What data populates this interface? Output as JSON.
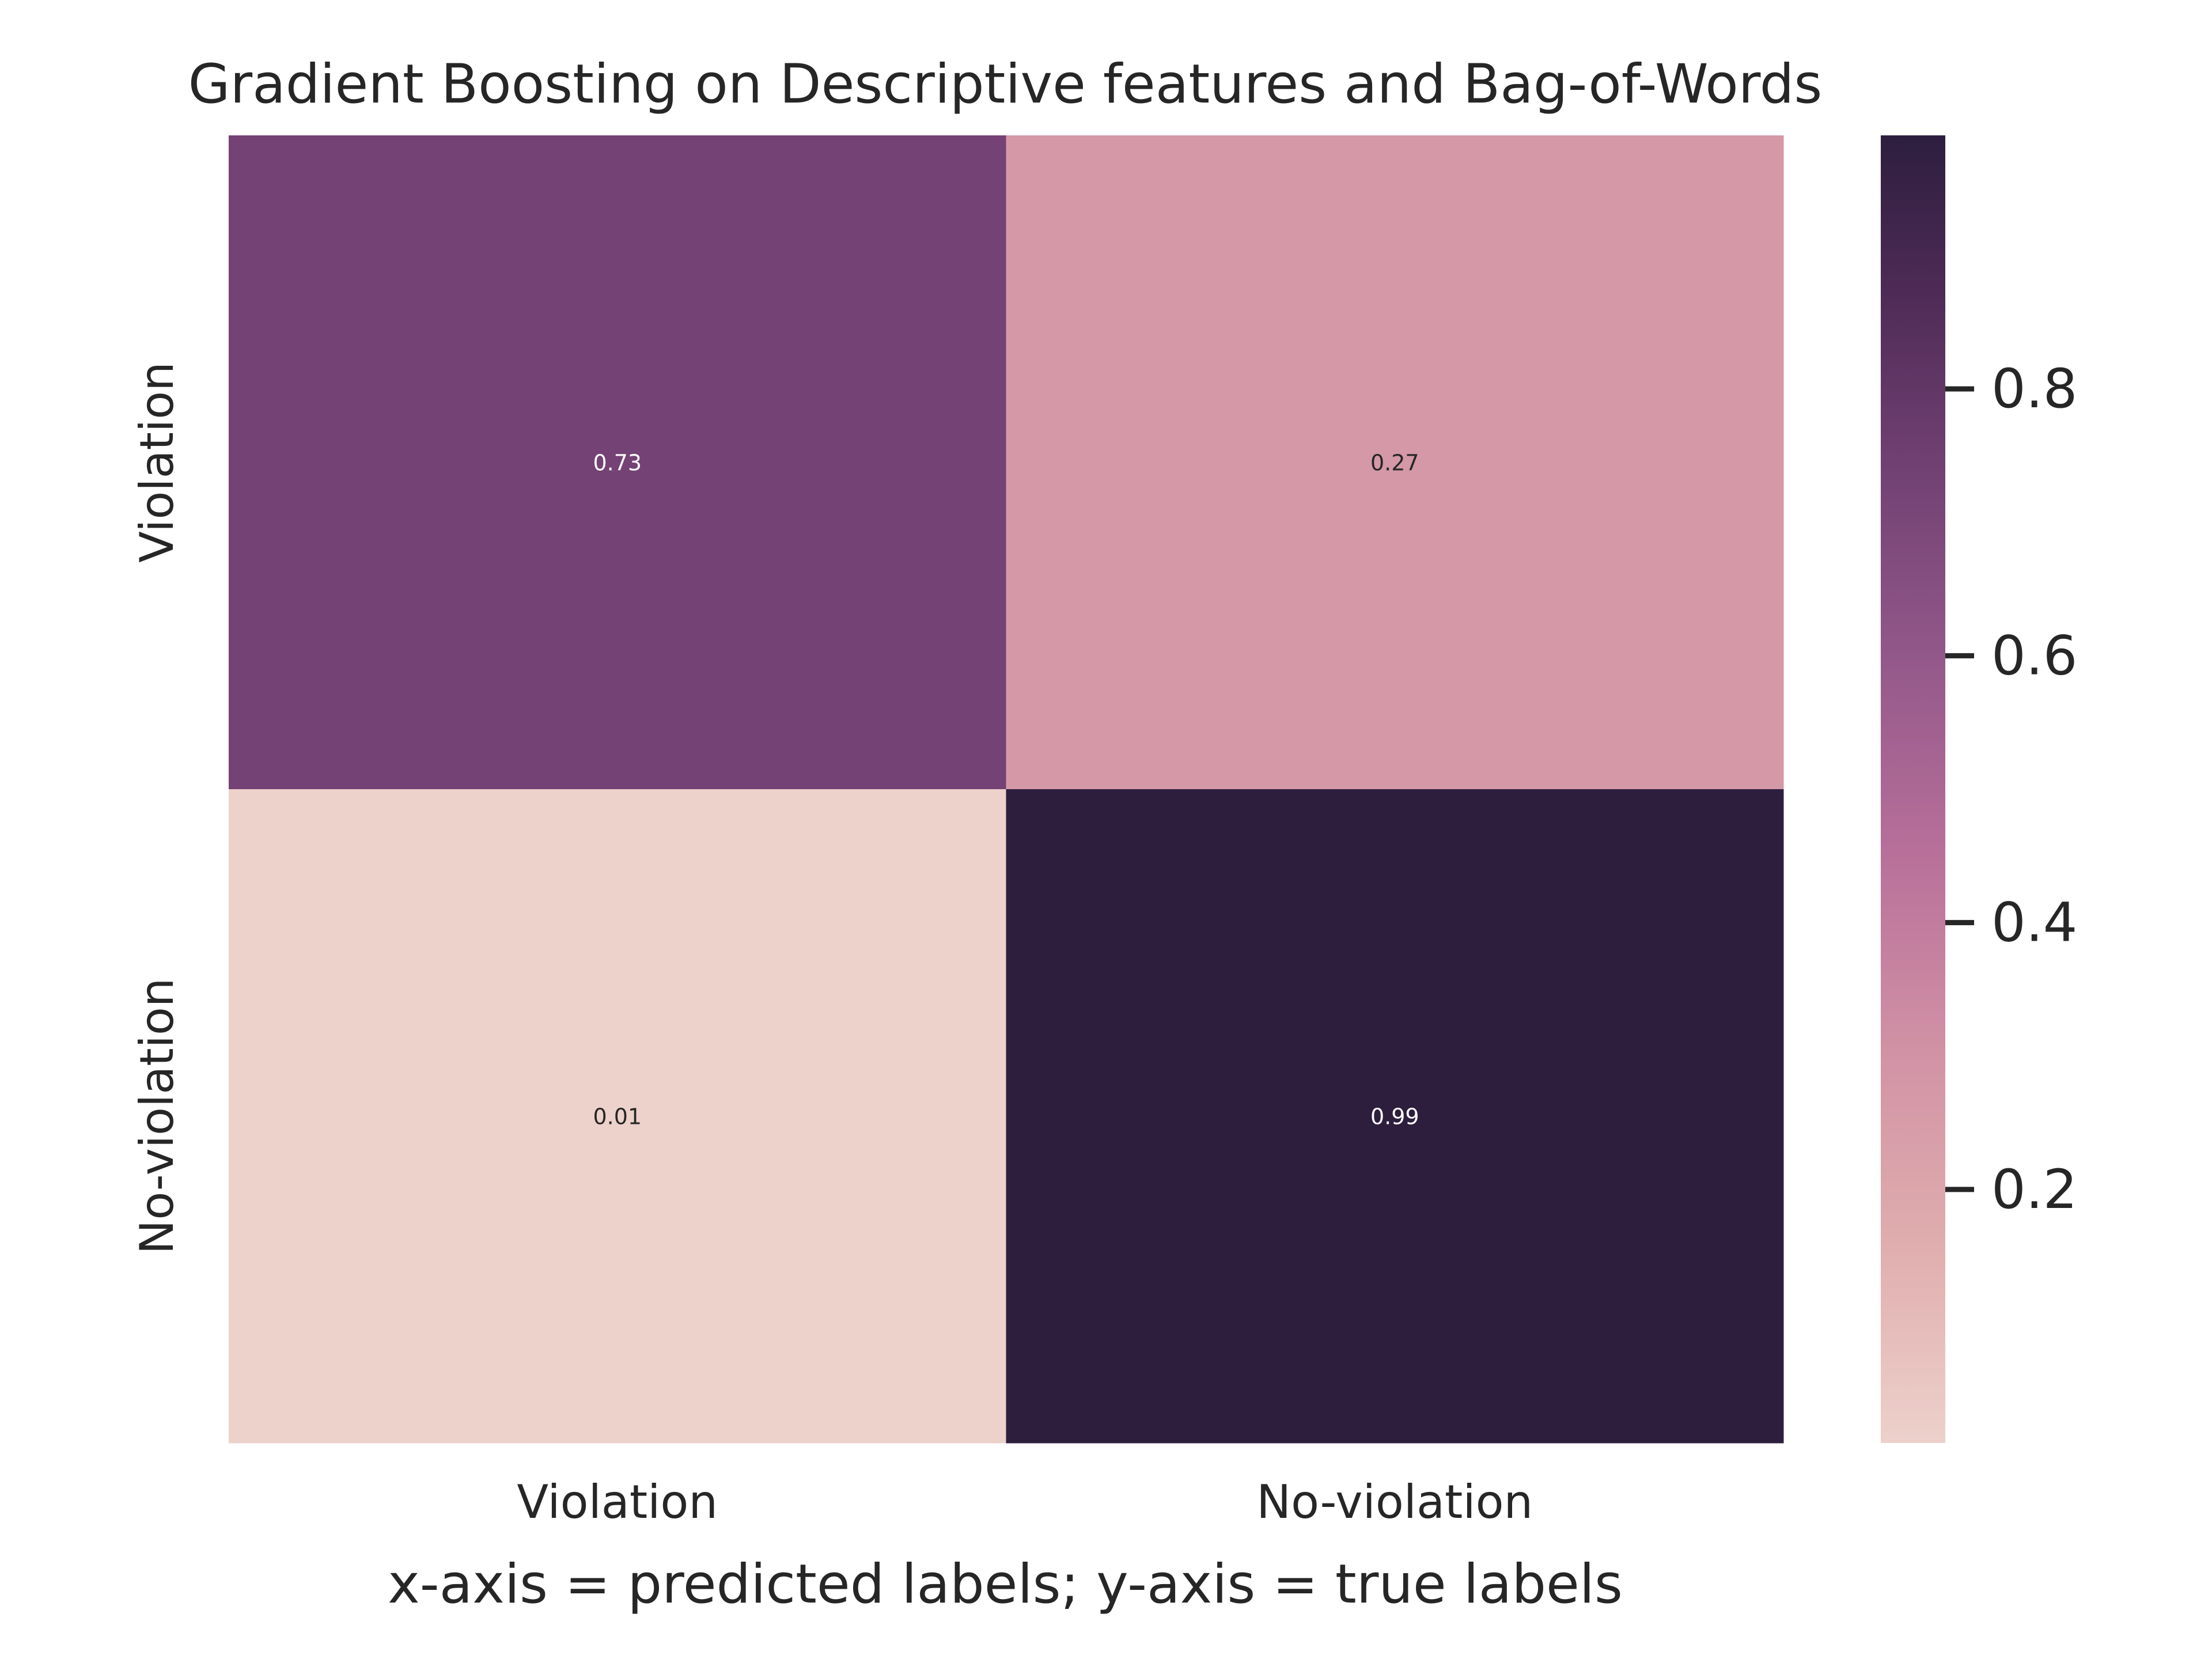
{
  "chart_data": {
    "type": "heatmap",
    "title": "Gradient Boosting on Descriptive features and Bag-of-Words",
    "xlabel": "x-axis = predicted labels; y-axis = true labels",
    "ylabel": "",
    "x_categories": [
      "Violation",
      "No-violation"
    ],
    "y_categories": [
      "Violation",
      "No-violation"
    ],
    "values": [
      [
        0.73,
        0.27
      ],
      [
        0.01,
        0.99
      ]
    ],
    "cell_labels": [
      [
        "0.73",
        "0.27"
      ],
      [
        "0.01",
        "0.99"
      ]
    ],
    "colorbar": {
      "range": [
        0.01,
        0.99
      ],
      "ticks": [
        0.2,
        0.4,
        0.6,
        0.8
      ],
      "tick_labels": [
        "0.2",
        "0.4",
        "0.6",
        "0.8"
      ],
      "colormap_stops": [
        {
          "value": 0.0,
          "color": "#edd1cb"
        },
        {
          "value": 0.15,
          "color": "#e0aeae"
        },
        {
          "value": 0.3,
          "color": "#d192a5"
        },
        {
          "value": 0.45,
          "color": "#b8709a"
        },
        {
          "value": 0.6,
          "color": "#93588a"
        },
        {
          "value": 0.75,
          "color": "#704072"
        },
        {
          "value": 0.88,
          "color": "#4e2b56"
        },
        {
          "value": 1.0,
          "color": "#2d1e3e"
        }
      ]
    },
    "grid": false
  }
}
